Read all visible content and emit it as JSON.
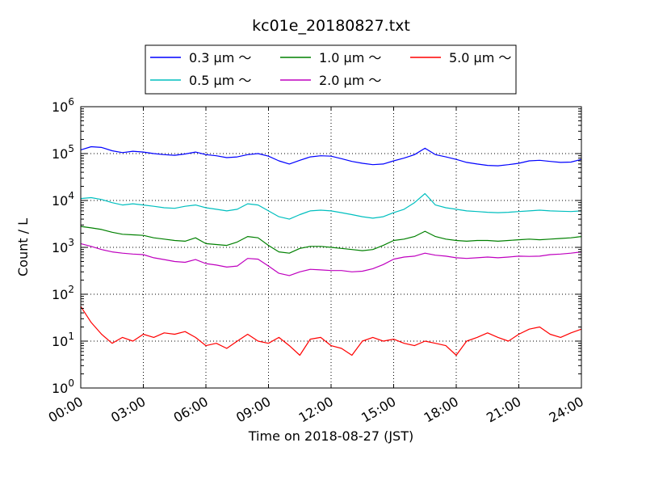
{
  "chart_data": {
    "type": "line",
    "title": "kc01e_20180827.txt",
    "xlabel": "Time on 2018-08-27 (JST)",
    "ylabel": "Count / L",
    "yscale": "log",
    "ylim": [
      1,
      1000000
    ],
    "xlim": [
      "00:00",
      "24:00"
    ],
    "x_tick_labels": [
      "00:00",
      "03:00",
      "06:00",
      "09:00",
      "12:00",
      "15:00",
      "18:00",
      "21:00",
      "24:00"
    ],
    "y_tick_labels": [
      {
        "base": "10",
        "exp": "0"
      },
      {
        "base": "10",
        "exp": "1"
      },
      {
        "base": "10",
        "exp": "2"
      },
      {
        "base": "10",
        "exp": "3"
      },
      {
        "base": "10",
        "exp": "4"
      },
      {
        "base": "10",
        "exp": "5"
      },
      {
        "base": "10",
        "exp": "6"
      }
    ],
    "grid": true,
    "legend_position": "top-center",
    "x": [
      0.0,
      0.5,
      1.0,
      1.5,
      2.0,
      2.5,
      3.0,
      3.5,
      4.0,
      4.5,
      5.0,
      5.5,
      6.0,
      6.5,
      7.0,
      7.5,
      8.0,
      8.5,
      9.0,
      9.5,
      10.0,
      10.5,
      11.0,
      11.5,
      12.0,
      12.5,
      13.0,
      13.5,
      14.0,
      14.5,
      15.0,
      15.5,
      16.0,
      16.5,
      17.0,
      17.5,
      18.0,
      18.5,
      19.0,
      19.5,
      20.0,
      20.5,
      21.0,
      21.5,
      22.0,
      22.5,
      23.0,
      23.5,
      24.0
    ],
    "series": [
      {
        "name": "0.3 μm ～",
        "color": "#0000ff",
        "values": [
          120000,
          140000,
          135000,
          115000,
          105000,
          112000,
          108000,
          100000,
          95000,
          92000,
          98000,
          108000,
          95000,
          90000,
          82000,
          85000,
          95000,
          100000,
          88000,
          70000,
          60000,
          72000,
          85000,
          90000,
          88000,
          78000,
          68000,
          62000,
          58000,
          60000,
          70000,
          80000,
          95000,
          130000,
          95000,
          85000,
          75000,
          65000,
          60000,
          56000,
          55000,
          58000,
          62000,
          70000,
          72000,
          68000,
          65000,
          66000,
          75000
        ]
      },
      {
        "name": "0.5 μm ～",
        "color": "#00bfbf",
        "values": [
          11000,
          11500,
          10500,
          9000,
          8000,
          8500,
          8000,
          7500,
          7000,
          6800,
          7500,
          8000,
          7000,
          6500,
          6000,
          6500,
          8500,
          8000,
          6000,
          4500,
          4000,
          5000,
          6000,
          6200,
          6000,
          5500,
          5000,
          4500,
          4200,
          4500,
          5500,
          6500,
          9000,
          14000,
          8000,
          7000,
          6500,
          6000,
          5800,
          5600,
          5500,
          5600,
          5800,
          6000,
          6200,
          6000,
          5900,
          5800,
          6000
        ]
      },
      {
        "name": "1.0 μm ～",
        "color": "#008000",
        "values": [
          2800,
          2600,
          2400,
          2100,
          1900,
          1850,
          1800,
          1600,
          1500,
          1400,
          1350,
          1600,
          1200,
          1150,
          1100,
          1300,
          1700,
          1600,
          1100,
          800,
          750,
          950,
          1050,
          1050,
          1000,
          950,
          900,
          850,
          900,
          1100,
          1400,
          1500,
          1700,
          2200,
          1700,
          1500,
          1400,
          1350,
          1400,
          1400,
          1350,
          1400,
          1450,
          1500,
          1450,
          1500,
          1550,
          1600,
          1700
        ]
      },
      {
        "name": "2.0 μm ～",
        "color": "#bf00bf",
        "values": [
          1200,
          1050,
          900,
          800,
          750,
          720,
          700,
          600,
          550,
          500,
          480,
          550,
          450,
          420,
          380,
          400,
          580,
          560,
          400,
          280,
          250,
          300,
          340,
          330,
          320,
          320,
          300,
          310,
          350,
          430,
          560,
          620,
          650,
          750,
          680,
          650,
          600,
          580,
          600,
          620,
          600,
          620,
          650,
          640,
          650,
          700,
          720,
          750,
          800
        ]
      },
      {
        "name": "5.0 μm ～",
        "color": "#ff0000",
        "values": [
          55,
          25,
          14,
          9,
          12,
          10,
          14,
          12,
          15,
          14,
          16,
          12,
          8,
          9,
          7,
          10,
          14,
          10,
          9,
          12,
          8,
          5,
          11,
          12,
          8,
          7,
          5,
          10,
          12,
          10,
          11,
          9,
          8,
          10,
          9,
          8,
          5,
          10,
          12,
          15,
          12,
          10,
          14,
          18,
          20,
          14,
          12,
          15,
          18
        ]
      }
    ]
  }
}
